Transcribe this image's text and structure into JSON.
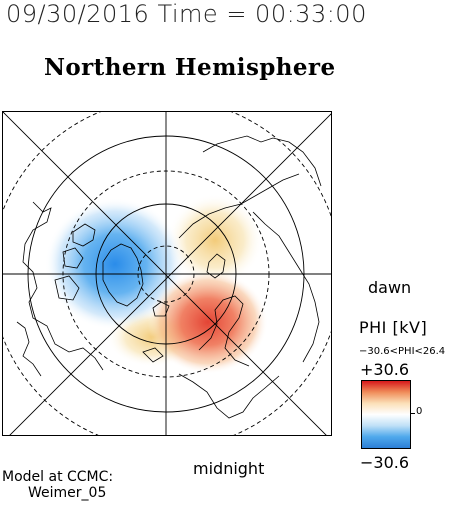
{
  "header": {
    "date_time": "09/30/2016 Time = 00:33:00"
  },
  "map": {
    "title": "Northern Hemisphere",
    "projection": "polar stereographic, north pole centered",
    "lon_lines_deg": [
      0,
      45,
      90,
      135,
      180,
      225,
      270,
      315
    ],
    "lat_circles": [
      {
        "lat": 80,
        "style": "dashed"
      },
      {
        "lat": 70,
        "style": "solid"
      },
      {
        "lat": 60,
        "style": "dashed"
      },
      {
        "lat": 50,
        "style": "solid"
      },
      {
        "lat": 40,
        "style": "dashed"
      }
    ],
    "potential_cells": [
      {
        "sign": "negative",
        "color": "#2a8ee6",
        "location": "dusk-side / upper-left",
        "peak_kV": -30.6
      },
      {
        "sign": "positive",
        "color": "#e84530",
        "location": "dawn-side / lower-right",
        "peak_kV": 26.4
      },
      {
        "sign": "positive-weak",
        "color": "#f2cf7a",
        "location": "noon-dawn arc",
        "peak_kV": 10
      }
    ]
  },
  "orientation_labels": {
    "dawn": "dawn",
    "midnight": "midnight"
  },
  "model": {
    "line1": "Model at CCMC:",
    "line2": "Weimer_05"
  },
  "colorbar": {
    "title": "PHI [kV]",
    "range_text": "−30.6<PHI<26.4",
    "max_label": "+30.6",
    "min_label": "−30.6",
    "zero_label": "0",
    "colors": [
      "#d7191c",
      "#f08d5a",
      "#fbe0b8",
      "#ffffff",
      "#bfe0f7",
      "#4fa9ec",
      "#2c7fd6"
    ]
  }
}
